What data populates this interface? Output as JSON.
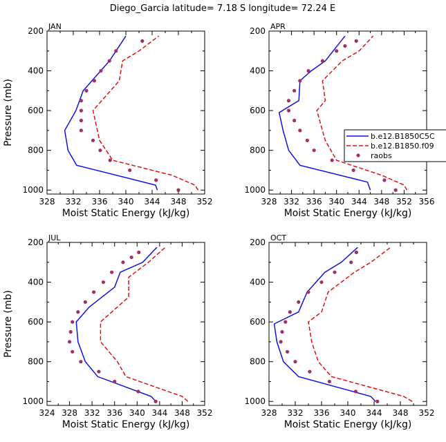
{
  "title": "Diego_Garcia   latitude= 7.18 S longitude= 72.24 E",
  "colors": {
    "model1": "#1010e0",
    "model2": "#e01010",
    "obs": "#a0306a"
  },
  "legend": {
    "entries": [
      {
        "label": "b.e12.B1850C5C",
        "style": "solid",
        "color": "#1010e0"
      },
      {
        "label": "b.e12.B1850.f09",
        "style": "dashed",
        "color": "#e01010"
      },
      {
        "label": "raobs",
        "style": "dot",
        "color": "#a0306a"
      }
    ]
  },
  "chart_data": [
    {
      "type": "line",
      "panel_label": "JAN",
      "xlabel": "Moist Static Energy (kJ/kg)",
      "ylabel": "Pressure (mb)",
      "xlim": [
        328,
        352
      ],
      "ylim": [
        1020,
        200
      ],
      "xticks": [
        328,
        332,
        336,
        340,
        344,
        348,
        352
      ],
      "yticks": [
        200,
        400,
        600,
        800,
        1000
      ],
      "series": [
        {
          "name": "b.e12.B1850C5C",
          "style": "solid",
          "x": [
            344.8,
            344.5,
            332.5,
            331.2,
            330.7,
            332.4,
            333.5,
            335.5,
            337.5,
            340.0
          ],
          "y": [
            1000,
            975,
            875,
            800,
            700,
            600,
            500,
            425,
            350,
            225
          ]
        },
        {
          "name": "b.e12.B1850.f09",
          "style": "dashed",
          "x": [
            351.0,
            350.5,
            347.0,
            338.0,
            336.0,
            335.0,
            339.0,
            339.5,
            342.0,
            345.0
          ],
          "y": [
            1000,
            975,
            925,
            850,
            750,
            600,
            450,
            350,
            300,
            225
          ]
        },
        {
          "name": "raobs",
          "style": "dot",
          "x": [
            348.0,
            344.6,
            340.6,
            337.6,
            336.1,
            335.0,
            333.2,
            333.2,
            333.2,
            333.2,
            334.0,
            335.2,
            336.2,
            337.5,
            338.5,
            342.5
          ],
          "y": [
            1000,
            950,
            900,
            850,
            800,
            750,
            700,
            650,
            600,
            550,
            500,
            450,
            400,
            350,
            300,
            250
          ]
        }
      ]
    },
    {
      "type": "line",
      "panel_label": "APR",
      "xlabel": "Moist Static Energy (kJ/kg)",
      "ylabel": "",
      "xlim": [
        328,
        356
      ],
      "ylim": [
        1020,
        200
      ],
      "xticks": [
        328,
        332,
        336,
        340,
        344,
        348,
        352,
        356
      ],
      "yticks": [
        200,
        400,
        600,
        800,
        1000
      ],
      "series": [
        {
          "name": "b.e12.B1850C5C",
          "style": "solid",
          "x": [
            346.0,
            345.5,
            333.5,
            331.5,
            330.5,
            329.8,
            333.3,
            333.5,
            335.5,
            338.0,
            341.5
          ],
          "y": [
            1000,
            960,
            875,
            800,
            700,
            610,
            550,
            450,
            400,
            350,
            225
          ]
        },
        {
          "name": "b.e12.B1850.f09",
          "style": "dashed",
          "x": [
            352.5,
            352.0,
            348.0,
            340.0,
            338.0,
            336.5,
            338.0,
            337.5,
            341.0,
            344.0,
            346.5
          ],
          "y": [
            1000,
            975,
            925,
            850,
            750,
            600,
            550,
            450,
            350,
            300,
            225
          ]
        },
        {
          "name": "raobs",
          "style": "dot",
          "x": [
            350.5,
            348.5,
            343.0,
            339.2,
            336.0,
            334.8,
            333.5,
            332.5,
            331.5,
            331.5,
            332.5,
            333.5,
            335.0,
            337.5,
            340.0,
            341.5,
            343.5
          ],
          "y": [
            1000,
            950,
            900,
            850,
            800,
            750,
            700,
            650,
            600,
            550,
            500,
            450,
            400,
            350,
            300,
            275,
            250
          ]
        }
      ]
    },
    {
      "type": "line",
      "panel_label": "JUL",
      "xlabel": "Moist Static Energy (kJ/kg)",
      "ylabel": "Pressure (mb)",
      "xlim": [
        324,
        352
      ],
      "ylim": [
        1020,
        200
      ],
      "xticks": [
        324,
        328,
        332,
        336,
        340,
        344,
        348,
        352
      ],
      "yticks": [
        200,
        400,
        600,
        800,
        1000
      ],
      "series": [
        {
          "name": "b.e12.B1850C5C",
          "style": "solid",
          "x": [
            343.3,
            342.5,
            333.0,
            330.8,
            329.5,
            329.2,
            331.5,
            336.0,
            337.0,
            341.0,
            343.5
          ],
          "y": [
            1000,
            975,
            875,
            800,
            700,
            600,
            525,
            425,
            350,
            300,
            225
          ]
        },
        {
          "name": "b.e12.B1850.f09",
          "style": "dashed",
          "x": [
            349.0,
            348.0,
            338.0,
            336.5,
            333.5,
            333.5,
            338.5,
            338.5,
            342.0,
            345.0
          ],
          "y": [
            1000,
            975,
            875,
            800,
            700,
            600,
            475,
            375,
            300,
            225
          ]
        },
        {
          "name": "raobs",
          "style": "dot",
          "x": [
            343.3,
            340.2,
            336.0,
            333.2,
            330.0,
            328.5,
            328.0,
            328.2,
            328.5,
            329.5,
            330.8,
            332.3,
            334.0,
            335.5,
            337.5,
            339.0,
            340.3
          ],
          "y": [
            1000,
            950,
            900,
            850,
            800,
            750,
            700,
            650,
            600,
            550,
            500,
            450,
            400,
            350,
            300,
            275,
            250
          ]
        }
      ]
    },
    {
      "type": "line",
      "panel_label": "OCT",
      "xlabel": "Moist Static Energy (kJ/kg)",
      "ylabel": "",
      "xlim": [
        328,
        352
      ],
      "ylim": [
        1020,
        200
      ],
      "xticks": [
        328,
        332,
        336,
        340,
        344,
        348,
        352
      ],
      "yticks": [
        200,
        400,
        600,
        800,
        1000
      ],
      "series": [
        {
          "name": "b.e12.B1850C5C",
          "style": "solid",
          "x": [
            344.2,
            343.5,
            332.5,
            330.2,
            329.2,
            328.8,
            332.5,
            333.8,
            336.5,
            339.0,
            341.5
          ],
          "y": [
            1000,
            975,
            875,
            800,
            700,
            610,
            550,
            450,
            350,
            300,
            225
          ]
        },
        {
          "name": "b.e12.B1850.f09",
          "style": "dashed",
          "x": [
            349.8,
            348.5,
            337.5,
            335.5,
            334.5,
            334.0,
            336.0,
            337.0,
            341.0,
            343.5,
            346.5
          ],
          "y": [
            1000,
            975,
            875,
            800,
            700,
            600,
            550,
            450,
            350,
            300,
            225
          ]
        },
        {
          "name": "raobs",
          "style": "dot",
          "x": [
            344.5,
            341.2,
            337.2,
            334.2,
            332.0,
            330.8,
            329.8,
            330.0,
            330.5,
            331.2,
            332.5,
            334.0,
            336.0,
            338.0,
            340.5,
            341.3
          ],
          "y": [
            1000,
            950,
            900,
            850,
            800,
            750,
            700,
            650,
            600,
            550,
            500,
            450,
            400,
            350,
            300,
            250
          ]
        }
      ]
    }
  ]
}
